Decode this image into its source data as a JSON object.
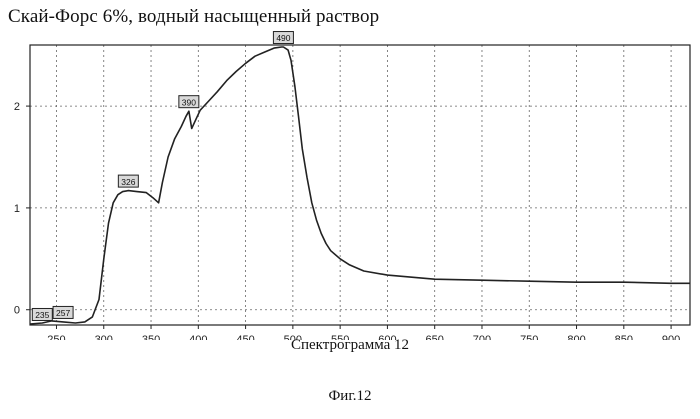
{
  "page": {
    "title": "Скай-Форс 6%, водный насыщенный раствор",
    "caption": "Спектрограмма 12",
    "figure_label": "Фиг.12"
  },
  "chart_data": {
    "type": "line",
    "title": "Скай-Форс 6%, водный насыщенный раствор",
    "xlabel": "",
    "ylabel": "",
    "xlim": [
      222,
      920
    ],
    "ylim": [
      -0.15,
      2.6
    ],
    "x_ticks": [
      250,
      300,
      350,
      400,
      450,
      500,
      550,
      600,
      650,
      700,
      750,
      800,
      850,
      900
    ],
    "y_ticks": [
      0,
      1,
      2
    ],
    "grid": true,
    "line_color": "#222222",
    "series": [
      {
        "x": [
          222,
          235,
          245,
          257,
          270,
          280,
          288,
          295,
          300,
          305,
          310,
          315,
          320,
          326,
          335,
          345,
          352,
          358,
          362,
          368,
          375,
          382,
          387,
          390,
          393,
          398,
          402,
          410,
          420,
          430,
          440,
          450,
          460,
          470,
          480,
          488,
          490,
          495,
          498,
          502,
          506,
          510,
          515,
          520,
          525,
          530,
          535,
          540,
          550,
          560,
          575,
          600,
          650,
          700,
          750,
          800,
          850,
          900,
          920
        ],
        "y": [
          -0.14,
          -0.13,
          -0.11,
          -0.12,
          -0.13,
          -0.12,
          -0.07,
          0.1,
          0.5,
          0.85,
          1.05,
          1.13,
          1.16,
          1.17,
          1.16,
          1.15,
          1.1,
          1.05,
          1.25,
          1.5,
          1.68,
          1.8,
          1.9,
          1.95,
          1.78,
          1.88,
          1.96,
          2.04,
          2.14,
          2.25,
          2.34,
          2.42,
          2.49,
          2.53,
          2.57,
          2.58,
          2.58,
          2.55,
          2.45,
          2.2,
          1.9,
          1.58,
          1.3,
          1.05,
          0.88,
          0.75,
          0.65,
          0.58,
          0.5,
          0.44,
          0.38,
          0.34,
          0.3,
          0.29,
          0.28,
          0.27,
          0.27,
          0.26,
          0.26
        ]
      }
    ],
    "annotations": [
      {
        "x": 235,
        "y": -0.14,
        "label": "235"
      },
      {
        "x": 257,
        "y": -0.12,
        "label": "257"
      },
      {
        "x": 326,
        "y": 1.17,
        "label": "326"
      },
      {
        "x": 390,
        "y": 1.95,
        "label": "390"
      },
      {
        "x": 490,
        "y": 2.58,
        "label": "490"
      }
    ]
  }
}
